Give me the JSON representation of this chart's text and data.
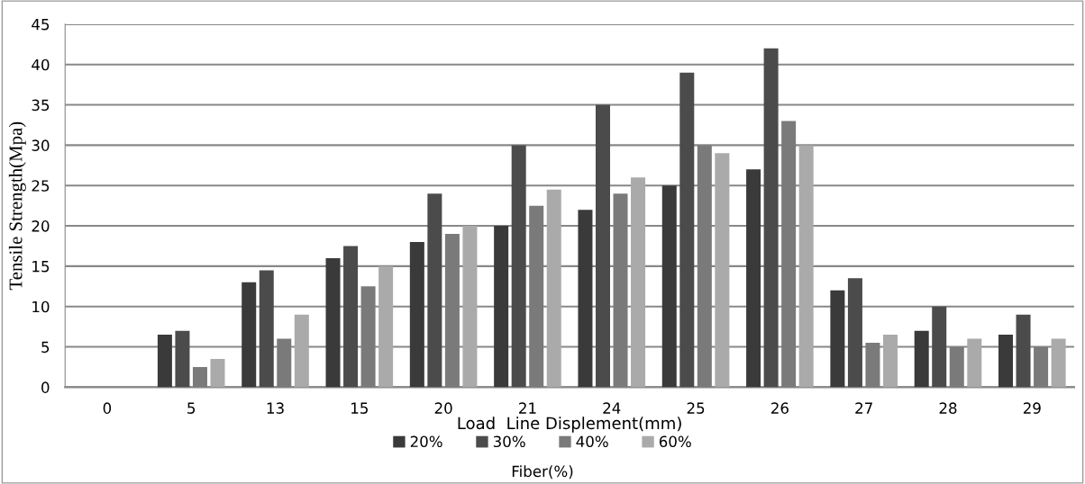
{
  "chart_data": {
    "type": "bar",
    "xlabel": "Load  Line Displement(mm)",
    "ylabel": "Tensile Strength(Mpa)",
    "legend_title": "Fiber(%)",
    "categories": [
      "0",
      "5",
      "13",
      "15",
      "20",
      "21",
      "24",
      "25",
      "26",
      "27",
      "28",
      "29"
    ],
    "series": [
      {
        "name": "20%",
        "color": "#3a3a3a",
        "values": [
          0,
          6.5,
          13,
          16,
          18,
          20,
          22,
          25,
          27,
          12,
          7,
          6.5
        ]
      },
      {
        "name": "30%",
        "color": "#4b4b4b",
        "values": [
          0,
          7,
          14.5,
          17.5,
          24,
          30,
          35,
          39,
          42,
          13.5,
          10,
          9
        ]
      },
      {
        "name": "40%",
        "color": "#7a7a7a",
        "values": [
          0,
          2.5,
          6,
          12.5,
          19,
          22.5,
          24,
          30,
          33,
          5.5,
          5,
          5
        ]
      },
      {
        "name": "60%",
        "color": "#aaaaaa",
        "values": [
          0,
          3.5,
          9,
          15,
          20,
          24.5,
          26,
          29,
          30,
          6.5,
          6,
          6
        ]
      }
    ],
    "ylim": [
      0,
      45
    ],
    "yticks": [
      0,
      5,
      10,
      15,
      20,
      25,
      30,
      35,
      40,
      45
    ],
    "grid": "y",
    "legend": "bottom"
  }
}
